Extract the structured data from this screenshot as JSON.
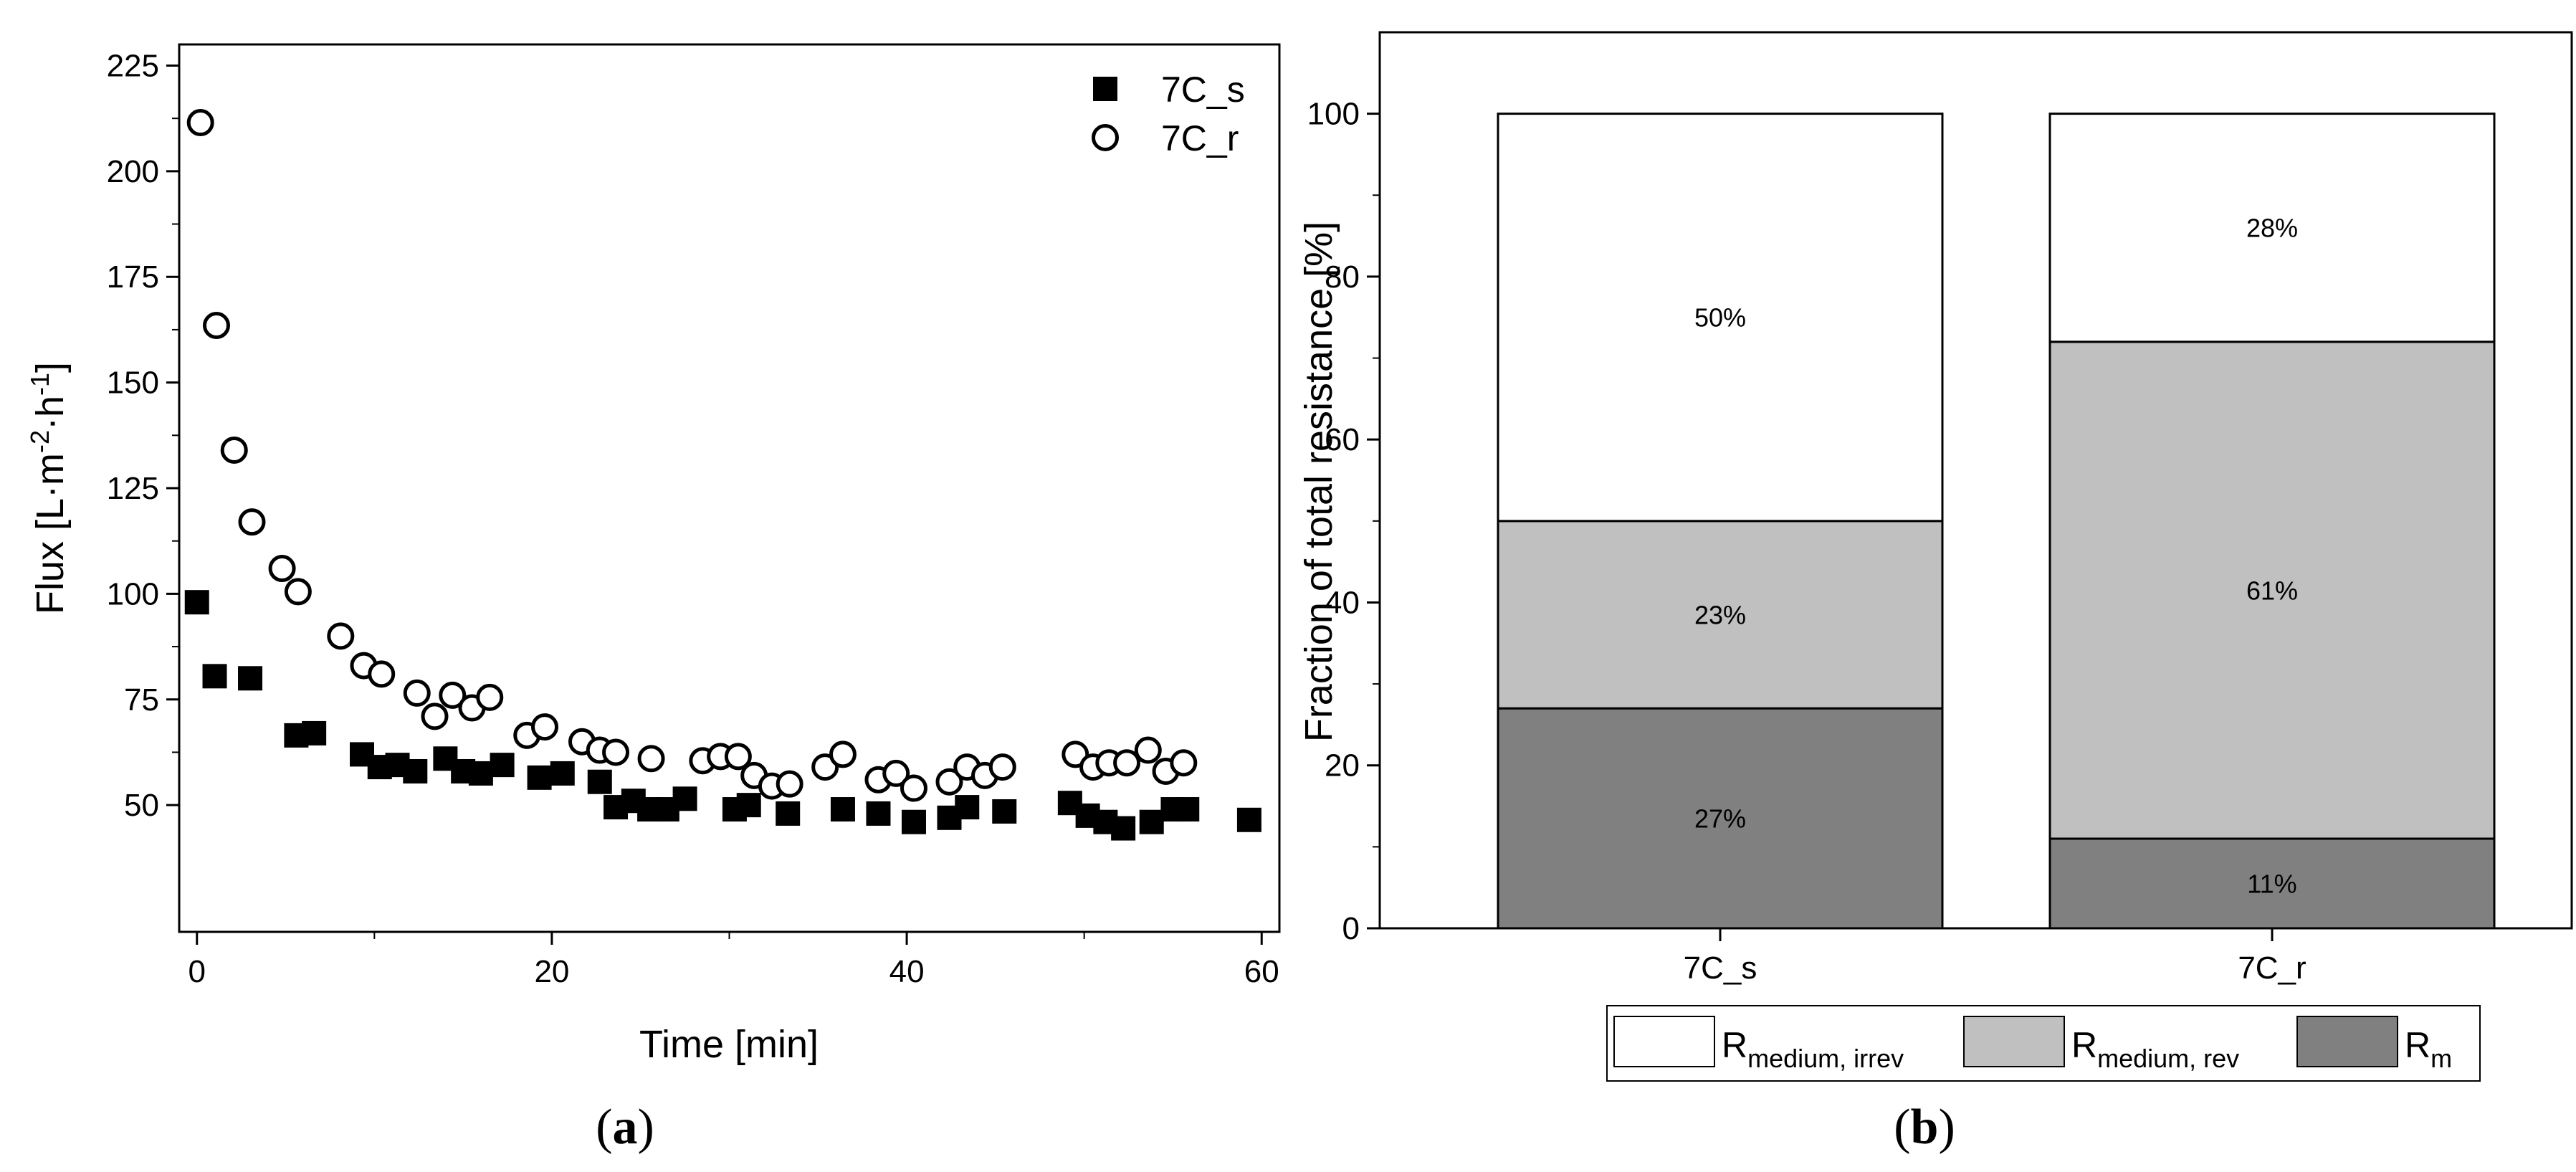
{
  "chart_data": [
    {
      "type": "scatter",
      "panel_label": {
        "open": "(",
        "letter": "a",
        "close": ")"
      },
      "xlabel": "Time [min]",
      "ylabel": {
        "text": "Flux [L·m",
        "sup1": "-2",
        "mid": "·h",
        "sup2": "-1",
        "end": "]"
      },
      "xlim": [
        -1,
        61
      ],
      "ylim": [
        20,
        230
      ],
      "xticks": [
        0,
        20,
        40,
        60
      ],
      "yticks": [
        50,
        75,
        100,
        125,
        150,
        175,
        200,
        225
      ],
      "legend_position": "top-right",
      "series": [
        {
          "name": "7C_s",
          "marker": "filled-square",
          "x": [
            0,
            1,
            3,
            5.6,
            6.6,
            9.3,
            10.3,
            11.3,
            12.3,
            14,
            15,
            16,
            17.2,
            19.3,
            20.6,
            22.7,
            23.6,
            24.6,
            25.5,
            26.5,
            27.5,
            30.3,
            31.1,
            33.3,
            36.4,
            38.4,
            40.4,
            42.4,
            43.4,
            45.5,
            49.2,
            50.2,
            51.2,
            52.2,
            53.8,
            55,
            55.8,
            59.3
          ],
          "y": [
            98,
            80.5,
            80,
            66.5,
            67,
            62,
            59,
            59.5,
            58,
            61,
            58,
            57.5,
            59.5,
            56.5,
            57.5,
            55.5,
            49.5,
            51,
            49,
            49,
            51.5,
            49,
            50,
            48,
            49,
            48,
            46,
            47,
            49.5,
            48.5,
            50.5,
            47.5,
            46,
            44.5,
            46,
            49,
            49,
            46.5
          ]
        },
        {
          "name": "7C_r",
          "marker": "open-circle",
          "x": [
            0.2,
            1.1,
            2.1,
            3.1,
            4.8,
            5.7,
            8.1,
            9.4,
            10.4,
            12.4,
            13.4,
            14.4,
            15.5,
            16.5,
            18.6,
            19.6,
            21.7,
            22.7,
            23.6,
            25.6,
            28.5,
            29.5,
            30.5,
            31.4,
            32.4,
            33.4,
            35.4,
            36.4,
            38.4,
            39.4,
            40.4,
            42.4,
            43.4,
            44.4,
            45.4,
            49.5,
            50.5,
            51.4,
            52.4,
            53.6,
            54.6,
            55.6
          ],
          "y": [
            211.5,
            163.5,
            134,
            117,
            106,
            100.5,
            90,
            83,
            81,
            76.5,
            71,
            76,
            73,
            75.5,
            66.5,
            68.5,
            65,
            63,
            62.5,
            61,
            60.5,
            61.5,
            61.5,
            57,
            54.5,
            55,
            59,
            62,
            56,
            57.5,
            54,
            55.5,
            59,
            57,
            59,
            62,
            59,
            60,
            60,
            63,
            58,
            60
          ]
        }
      ]
    },
    {
      "type": "bar",
      "stacked": true,
      "panel_label": {
        "open": "(",
        "letter": "b",
        "close": ")"
      },
      "ylabel": "Fraction of total resistance [%]",
      "xlabel": "",
      "ylim": [
        0,
        110
      ],
      "yticks": [
        0,
        20,
        40,
        60,
        80,
        100
      ],
      "categories": [
        "7C_s",
        "7C_r"
      ],
      "legend_position": "bottom",
      "series": [
        {
          "name": "R_m",
          "legend_main": "R",
          "legend_sub": "m",
          "color": "#808080",
          "values": [
            27,
            11
          ],
          "labels": [
            "27%",
            "11%"
          ]
        },
        {
          "name": "R_medium, rev",
          "legend_main": "R",
          "legend_sub": "medium, rev",
          "color": "#c0c0c0",
          "values": [
            23,
            61
          ],
          "labels": [
            "23%",
            "61%"
          ]
        },
        {
          "name": "R_medium, irrev",
          "legend_main": "R",
          "legend_sub": "medium, irrev",
          "color": "#ffffff",
          "values": [
            50,
            28
          ],
          "labels": [
            "50%",
            "28%"
          ]
        }
      ]
    }
  ]
}
